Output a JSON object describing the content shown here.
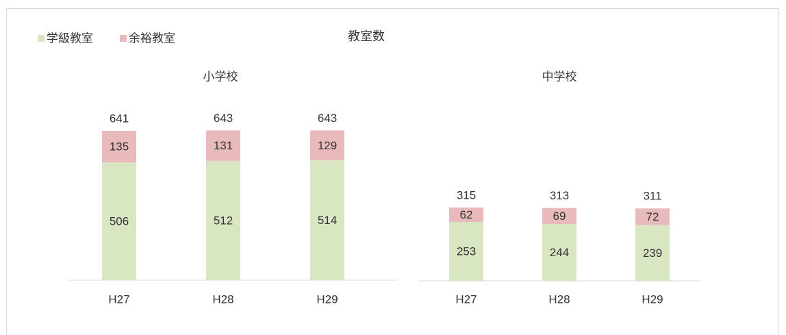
{
  "title": "教室数",
  "chart_data": [
    {
      "type": "stacked_bar",
      "title": "小学校",
      "categories": [
        "H27",
        "H28",
        "H29"
      ],
      "series": [
        {
          "name": "学級教室",
          "color": "#d9e6c2",
          "values": [
            506,
            512,
            514
          ]
        },
        {
          "name": "余裕教室",
          "color": "#e8babc",
          "values": [
            135,
            131,
            129
          ]
        }
      ],
      "totals": [
        641,
        643,
        643
      ]
    },
    {
      "type": "stacked_bar",
      "title": "中学校",
      "categories": [
        "H27",
        "H28",
        "H29"
      ],
      "series": [
        {
          "name": "学級教室",
          "color": "#d9e6c2",
          "values": [
            253,
            244,
            239
          ]
        },
        {
          "name": "余裕教室",
          "color": "#e8babc",
          "values": [
            62,
            69,
            72
          ]
        }
      ],
      "totals": [
        315,
        313,
        311
      ]
    }
  ]
}
